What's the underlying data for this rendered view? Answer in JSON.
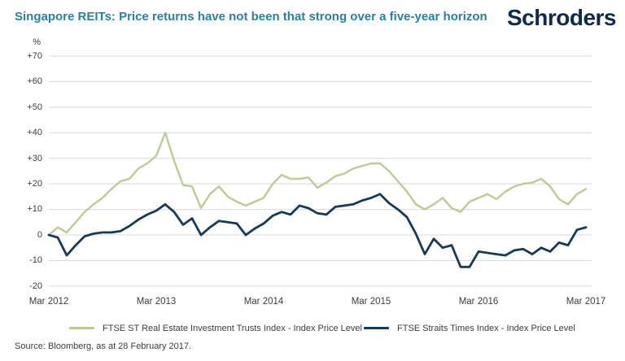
{
  "header": {
    "title": "Singapore REITs: Price returns have not been that strong over a five-year horizon",
    "logo_text": "Schroders"
  },
  "colors": {
    "title_blue": "#2b7ea6",
    "logo_navy": "#102a4c",
    "reit_green": "#b7cd92",
    "sti_navy": "#16395c",
    "gridline_gray": "#d8d8d8",
    "text_gray": "#3c3c3c"
  },
  "chart_data": {
    "type": "line",
    "title": "Singapore REITs: Price returns have not been that strong over a five-year horizon",
    "unit": "%",
    "xlabel": "",
    "ylabel": "%",
    "ylim": [
      -20,
      70
    ],
    "grid": true,
    "legend_position": "bottom",
    "x_start": "Mar 2012",
    "x_end": "Mar 2017",
    "frequency": "monthly",
    "x_tick_labels": [
      "Mar 2012",
      "Mar 2013",
      "Mar 2014",
      "Mar 2015",
      "Mar 2016",
      "Mar 2017"
    ],
    "y_tick_labels": [
      "+70",
      "+60",
      "+50",
      "+40",
      "+30",
      "+20",
      "+10",
      "0",
      "-10",
      "-20"
    ],
    "series": [
      {
        "name": "FTSE ST Real Estate Investment Trusts Index - Index Price Level",
        "color": "#b7cd92",
        "values": [
          0,
          3,
          1,
          5,
          9,
          12,
          14.5,
          18,
          21,
          22,
          26,
          28,
          31,
          40,
          29,
          19.5,
          19,
          10.5,
          16,
          19,
          15,
          13,
          11.5,
          13,
          14.5,
          20,
          23.5,
          22,
          22,
          22.5,
          18.5,
          20.5,
          23,
          24,
          26,
          27,
          28,
          28,
          25,
          21,
          17,
          12,
          10,
          12,
          14.5,
          10.5,
          9,
          13,
          14.5,
          16,
          14,
          17,
          19,
          20,
          20.5,
          22,
          19,
          14,
          12,
          16,
          18
        ]
      },
      {
        "name": "FTSE Straits Times Index - Index Price Level",
        "color": "#16395c",
        "values": [
          0,
          -1,
          -8,
          -4,
          -0.5,
          0.5,
          1,
          1,
          1.5,
          3.5,
          6,
          8,
          9.5,
          12,
          9,
          4,
          6.5,
          0,
          3,
          5.5,
          5,
          4.5,
          0,
          2.5,
          4.5,
          7.5,
          9,
          8,
          11.5,
          10.5,
          8.5,
          8,
          11,
          11.5,
          12,
          13.5,
          14.5,
          16,
          12.5,
          10,
          7,
          0.5,
          -7.5,
          -1.5,
          -5,
          -4,
          -12.5,
          -12.5,
          -6.5,
          -7,
          -7.5,
          -8,
          -6,
          -5.5,
          -7.5,
          -5,
          -6.5,
          -3,
          -4,
          2,
          3
        ]
      }
    ]
  },
  "footer": {
    "source": "Source: Bloomberg, as at 28 February 2017."
  }
}
